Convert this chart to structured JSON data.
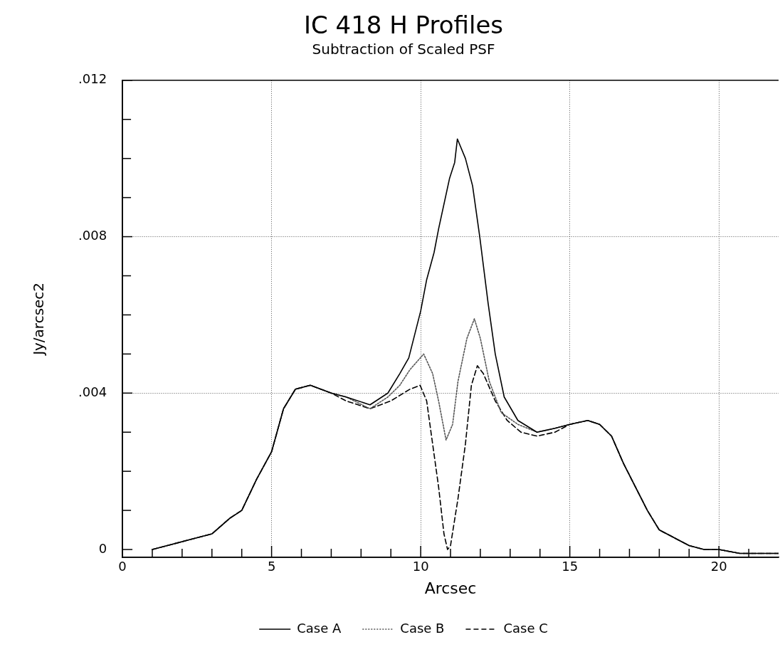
{
  "chart_data": {
    "type": "line",
    "title": "IC 418 H Profiles",
    "subtitle": "Subtraction of Scaled PSF",
    "xlabel": "Arcsec",
    "ylabel": "Jy/arcsec2",
    "xlim": [
      0,
      22
    ],
    "ylim": [
      -0.0002,
      0.012
    ],
    "xticks": [
      0,
      {
        "value": 1,
        "label": null
      },
      {
        "value": 2,
        "label": null
      },
      {
        "value": 3,
        "label": null
      },
      {
        "value": 4,
        "label": null
      },
      5,
      {
        "value": 6,
        "label": null
      },
      {
        "value": 7,
        "label": null
      },
      {
        "value": 8,
        "label": null
      },
      {
        "value": 9,
        "label": null
      },
      10,
      {
        "value": 11,
        "label": null
      },
      {
        "value": 12,
        "label": null
      },
      {
        "value": 13,
        "label": null
      },
      {
        "value": 14,
        "label": null
      },
      15,
      {
        "value": 16,
        "label": null
      },
      {
        "value": 17,
        "label": null
      },
      {
        "value": 18,
        "label": null
      },
      {
        "value": 19,
        "label": null
      },
      20,
      {
        "value": 21,
        "label": null
      }
    ],
    "yticks": [
      {
        "value": 0,
        "label": "0"
      },
      {
        "value": 0.001,
        "label": null
      },
      {
        "value": 0.002,
        "label": null
      },
      {
        "value": 0.003,
        "label": null
      },
      {
        "value": 0.004,
        "label": ".004"
      },
      {
        "value": 0.005,
        "label": null
      },
      {
        "value": 0.006,
        "label": null
      },
      {
        "value": 0.007,
        "label": null
      },
      {
        "value": 0.008,
        "label": ".008"
      },
      {
        "value": 0.009,
        "label": null
      },
      {
        "value": 0.01,
        "label": null
      },
      {
        "value": 0.011,
        "label": null
      },
      {
        "value": 0.012,
        "label": ".012"
      }
    ],
    "grid": true,
    "legend": "bottom",
    "marker": "none",
    "series": [
      {
        "name": "Case A",
        "color": "#000000",
        "line_style": "solid",
        "x": [
          1,
          1.5,
          2,
          3,
          3.6,
          4,
          4.5,
          5,
          5.4,
          5.8,
          6.3,
          7,
          7.5,
          8.3,
          8.9,
          9.3,
          9.6,
          10,
          10.2,
          10.45,
          10.6,
          10.97,
          11.14,
          11.23,
          11.5,
          11.74,
          11.98,
          12.26,
          12.5,
          12.8,
          13.26,
          13.9,
          14.5,
          15,
          15.6,
          16,
          16.4,
          16.8,
          17.2,
          17.6,
          18,
          18.5,
          19,
          19.5,
          20,
          20.7,
          21.5,
          22
        ],
        "values": [
          0,
          0.0001,
          0.0002,
          0.0004,
          0.0008,
          0.001,
          0.0018,
          0.0025,
          0.0036,
          0.0041,
          0.0042,
          0.004,
          0.0039,
          0.0037,
          0.004,
          0.0045,
          0.0049,
          0.0061,
          0.0069,
          0.0076,
          0.0082,
          0.0095,
          0.0099,
          0.0105,
          0.01,
          0.0093,
          0.008,
          0.0063,
          0.005,
          0.0039,
          0.0033,
          0.003,
          0.0031,
          0.0032,
          0.0033,
          0.0032,
          0.0029,
          0.0022,
          0.0016,
          0.001,
          0.0005,
          0.0003,
          0.0001,
          0,
          0,
          -0.0001,
          -0.0001,
          -0.0001
        ]
      },
      {
        "name": "Case B",
        "color": "#555555",
        "line_style": "dotted",
        "x": [
          1,
          1.5,
          2,
          3,
          3.6,
          4,
          4.5,
          5,
          5.4,
          5.8,
          6.3,
          7,
          7.5,
          8.3,
          8.9,
          9.3,
          9.64,
          10.1,
          10.4,
          10.6,
          10.85,
          11.07,
          11.25,
          11.55,
          11.8,
          12,
          12.3,
          12.7,
          13.26,
          13.9,
          14.5,
          15,
          15.6,
          16,
          16.4,
          16.8,
          17.2,
          17.6,
          18,
          18.5,
          19,
          19.5,
          20,
          20.7,
          21.5,
          22
        ],
        "values": [
          0,
          0.0001,
          0.0002,
          0.0004,
          0.0008,
          0.001,
          0.0018,
          0.0025,
          0.0036,
          0.0041,
          0.0042,
          0.004,
          0.0039,
          0.0036,
          0.0039,
          0.0042,
          0.0046,
          0.005,
          0.0045,
          0.0038,
          0.0028,
          0.0032,
          0.0043,
          0.0054,
          0.0059,
          0.0054,
          0.0043,
          0.0035,
          0.0032,
          0.003,
          0.0031,
          0.0032,
          0.0033,
          0.0032,
          0.0029,
          0.0022,
          0.0016,
          0.001,
          0.0005,
          0.0003,
          0.0001,
          0,
          0,
          -0.0001,
          -0.0001,
          -0.0001
        ]
      },
      {
        "name": "Case C",
        "color": "#000000",
        "line_style": "dashed",
        "x": [
          1,
          1.5,
          2,
          3,
          3.6,
          4,
          4.5,
          5,
          5.4,
          5.8,
          6.3,
          7,
          7.5,
          8.3,
          9,
          9.64,
          9.98,
          10.2,
          10.4,
          10.6,
          10.78,
          10.9,
          11,
          11.25,
          11.5,
          11.7,
          11.9,
          12.1,
          12.5,
          12.9,
          13.36,
          13.9,
          14.5,
          15,
          15.6,
          16,
          16.4,
          16.8,
          17.2,
          17.6,
          18,
          18.5,
          19,
          19.5,
          20,
          20.7,
          21.5,
          22
        ],
        "values": [
          0,
          0.0001,
          0.0002,
          0.0004,
          0.0008,
          0.001,
          0.0018,
          0.0025,
          0.0036,
          0.0041,
          0.0042,
          0.004,
          0.0038,
          0.0036,
          0.0038,
          0.0041,
          0.0042,
          0.0038,
          0.0027,
          0.0016,
          0.0004,
          0,
          0.0001,
          0.0013,
          0.0027,
          0.0042,
          0.0047,
          0.0045,
          0.0038,
          0.0033,
          0.003,
          0.0029,
          0.003,
          0.0032,
          0.0033,
          0.0032,
          0.0029,
          0.0022,
          0.0016,
          0.001,
          0.0005,
          0.0003,
          0.0001,
          0,
          0,
          -0.0001,
          -0.0001,
          -0.0001
        ]
      }
    ]
  }
}
